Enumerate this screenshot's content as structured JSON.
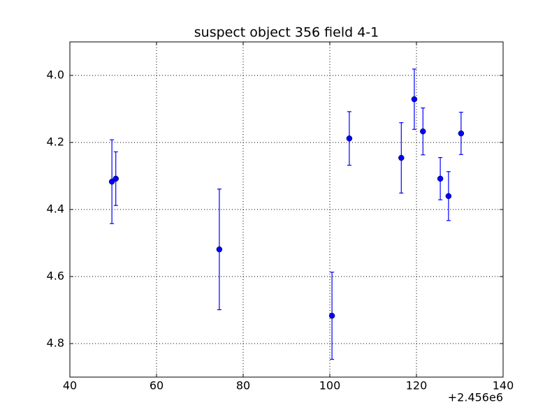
{
  "chart_data": {
    "type": "errorbar",
    "title": "suspect object 356 field 4-1",
    "x_offset_label": "+2.456e6",
    "x": [
      49.7,
      50.6,
      74.5,
      100.5,
      104.5,
      116.5,
      119.5,
      121.5,
      125.5,
      127.4,
      130.3
    ],
    "series": [
      {
        "color": "#0000ff",
        "values": [
          4.317,
          4.308,
          4.519,
          4.717,
          4.188,
          4.246,
          4.071,
          4.167,
          4.308,
          4.36,
          4.173
        ],
        "errors": [
          0.125,
          0.08,
          0.18,
          0.13,
          0.08,
          0.105,
          0.09,
          0.07,
          0.063,
          0.073,
          0.063
        ]
      }
    ],
    "xlim": [
      40,
      140
    ],
    "xticks": [
      40,
      60,
      80,
      100,
      120,
      140
    ],
    "ylim": [
      4.9,
      3.9
    ],
    "yinverted": true,
    "yticks": [
      {
        "value": 4,
        "label": "4.0"
      },
      4.2,
      4.4,
      4.6,
      4.8
    ],
    "grid": true
  }
}
